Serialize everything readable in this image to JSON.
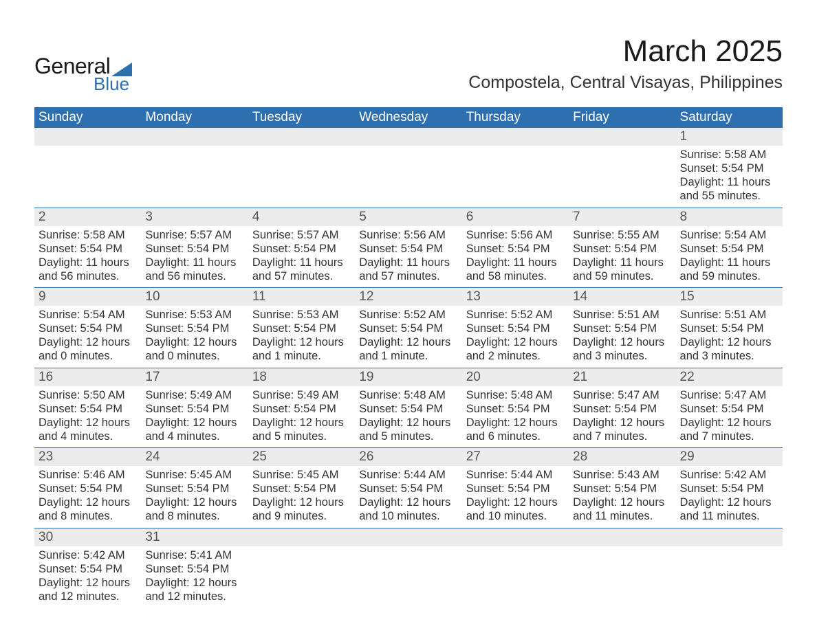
{
  "logo": {
    "text_general": "General",
    "text_blue": "Blue"
  },
  "title": "March 2025",
  "location": "Compostela, Central Visayas, Philippines",
  "colors": {
    "header_bg": "#2e6fb0",
    "header_text": "#ffffff",
    "daynum_bg": "#ececec",
    "daynum_text": "#555555",
    "body_text": "#333333",
    "rule": "#2e6fb0",
    "page_bg": "#ffffff"
  },
  "typography": {
    "title_fontsize": 44,
    "subtitle_fontsize": 25,
    "weekday_fontsize": 19,
    "daynum_fontsize": 19,
    "detail_fontsize": 16.5,
    "font_family": "Arial"
  },
  "weekdays": [
    "Sunday",
    "Monday",
    "Tuesday",
    "Wednesday",
    "Thursday",
    "Friday",
    "Saturday"
  ],
  "weeks": [
    [
      {
        "day": "",
        "sunrise": "",
        "sunset": "",
        "daylight": ""
      },
      {
        "day": "",
        "sunrise": "",
        "sunset": "",
        "daylight": ""
      },
      {
        "day": "",
        "sunrise": "",
        "sunset": "",
        "daylight": ""
      },
      {
        "day": "",
        "sunrise": "",
        "sunset": "",
        "daylight": ""
      },
      {
        "day": "",
        "sunrise": "",
        "sunset": "",
        "daylight": ""
      },
      {
        "day": "",
        "sunrise": "",
        "sunset": "",
        "daylight": ""
      },
      {
        "day": "1",
        "sunrise": "Sunrise: 5:58 AM",
        "sunset": "Sunset: 5:54 PM",
        "daylight": "Daylight: 11 hours and 55 minutes."
      }
    ],
    [
      {
        "day": "2",
        "sunrise": "Sunrise: 5:58 AM",
        "sunset": "Sunset: 5:54 PM",
        "daylight": "Daylight: 11 hours and 56 minutes."
      },
      {
        "day": "3",
        "sunrise": "Sunrise: 5:57 AM",
        "sunset": "Sunset: 5:54 PM",
        "daylight": "Daylight: 11 hours and 56 minutes."
      },
      {
        "day": "4",
        "sunrise": "Sunrise: 5:57 AM",
        "sunset": "Sunset: 5:54 PM",
        "daylight": "Daylight: 11 hours and 57 minutes."
      },
      {
        "day": "5",
        "sunrise": "Sunrise: 5:56 AM",
        "sunset": "Sunset: 5:54 PM",
        "daylight": "Daylight: 11 hours and 57 minutes."
      },
      {
        "day": "6",
        "sunrise": "Sunrise: 5:56 AM",
        "sunset": "Sunset: 5:54 PM",
        "daylight": "Daylight: 11 hours and 58 minutes."
      },
      {
        "day": "7",
        "sunrise": "Sunrise: 5:55 AM",
        "sunset": "Sunset: 5:54 PM",
        "daylight": "Daylight: 11 hours and 59 minutes."
      },
      {
        "day": "8",
        "sunrise": "Sunrise: 5:54 AM",
        "sunset": "Sunset: 5:54 PM",
        "daylight": "Daylight: 11 hours and 59 minutes."
      }
    ],
    [
      {
        "day": "9",
        "sunrise": "Sunrise: 5:54 AM",
        "sunset": "Sunset: 5:54 PM",
        "daylight": "Daylight: 12 hours and 0 minutes."
      },
      {
        "day": "10",
        "sunrise": "Sunrise: 5:53 AM",
        "sunset": "Sunset: 5:54 PM",
        "daylight": "Daylight: 12 hours and 0 minutes."
      },
      {
        "day": "11",
        "sunrise": "Sunrise: 5:53 AM",
        "sunset": "Sunset: 5:54 PM",
        "daylight": "Daylight: 12 hours and 1 minute."
      },
      {
        "day": "12",
        "sunrise": "Sunrise: 5:52 AM",
        "sunset": "Sunset: 5:54 PM",
        "daylight": "Daylight: 12 hours and 1 minute."
      },
      {
        "day": "13",
        "sunrise": "Sunrise: 5:52 AM",
        "sunset": "Sunset: 5:54 PM",
        "daylight": "Daylight: 12 hours and 2 minutes."
      },
      {
        "day": "14",
        "sunrise": "Sunrise: 5:51 AM",
        "sunset": "Sunset: 5:54 PM",
        "daylight": "Daylight: 12 hours and 3 minutes."
      },
      {
        "day": "15",
        "sunrise": "Sunrise: 5:51 AM",
        "sunset": "Sunset: 5:54 PM",
        "daylight": "Daylight: 12 hours and 3 minutes."
      }
    ],
    [
      {
        "day": "16",
        "sunrise": "Sunrise: 5:50 AM",
        "sunset": "Sunset: 5:54 PM",
        "daylight": "Daylight: 12 hours and 4 minutes."
      },
      {
        "day": "17",
        "sunrise": "Sunrise: 5:49 AM",
        "sunset": "Sunset: 5:54 PM",
        "daylight": "Daylight: 12 hours and 4 minutes."
      },
      {
        "day": "18",
        "sunrise": "Sunrise: 5:49 AM",
        "sunset": "Sunset: 5:54 PM",
        "daylight": "Daylight: 12 hours and 5 minutes."
      },
      {
        "day": "19",
        "sunrise": "Sunrise: 5:48 AM",
        "sunset": "Sunset: 5:54 PM",
        "daylight": "Daylight: 12 hours and 5 minutes."
      },
      {
        "day": "20",
        "sunrise": "Sunrise: 5:48 AM",
        "sunset": "Sunset: 5:54 PM",
        "daylight": "Daylight: 12 hours and 6 minutes."
      },
      {
        "day": "21",
        "sunrise": "Sunrise: 5:47 AM",
        "sunset": "Sunset: 5:54 PM",
        "daylight": "Daylight: 12 hours and 7 minutes."
      },
      {
        "day": "22",
        "sunrise": "Sunrise: 5:47 AM",
        "sunset": "Sunset: 5:54 PM",
        "daylight": "Daylight: 12 hours and 7 minutes."
      }
    ],
    [
      {
        "day": "23",
        "sunrise": "Sunrise: 5:46 AM",
        "sunset": "Sunset: 5:54 PM",
        "daylight": "Daylight: 12 hours and 8 minutes."
      },
      {
        "day": "24",
        "sunrise": "Sunrise: 5:45 AM",
        "sunset": "Sunset: 5:54 PM",
        "daylight": "Daylight: 12 hours and 8 minutes."
      },
      {
        "day": "25",
        "sunrise": "Sunrise: 5:45 AM",
        "sunset": "Sunset: 5:54 PM",
        "daylight": "Daylight: 12 hours and 9 minutes."
      },
      {
        "day": "26",
        "sunrise": "Sunrise: 5:44 AM",
        "sunset": "Sunset: 5:54 PM",
        "daylight": "Daylight: 12 hours and 10 minutes."
      },
      {
        "day": "27",
        "sunrise": "Sunrise: 5:44 AM",
        "sunset": "Sunset: 5:54 PM",
        "daylight": "Daylight: 12 hours and 10 minutes."
      },
      {
        "day": "28",
        "sunrise": "Sunrise: 5:43 AM",
        "sunset": "Sunset: 5:54 PM",
        "daylight": "Daylight: 12 hours and 11 minutes."
      },
      {
        "day": "29",
        "sunrise": "Sunrise: 5:42 AM",
        "sunset": "Sunset: 5:54 PM",
        "daylight": "Daylight: 12 hours and 11 minutes."
      }
    ],
    [
      {
        "day": "30",
        "sunrise": "Sunrise: 5:42 AM",
        "sunset": "Sunset: 5:54 PM",
        "daylight": "Daylight: 12 hours and 12 minutes."
      },
      {
        "day": "31",
        "sunrise": "Sunrise: 5:41 AM",
        "sunset": "Sunset: 5:54 PM",
        "daylight": "Daylight: 12 hours and 12 minutes."
      },
      {
        "day": "",
        "sunrise": "",
        "sunset": "",
        "daylight": ""
      },
      {
        "day": "",
        "sunrise": "",
        "sunset": "",
        "daylight": ""
      },
      {
        "day": "",
        "sunrise": "",
        "sunset": "",
        "daylight": ""
      },
      {
        "day": "",
        "sunrise": "",
        "sunset": "",
        "daylight": ""
      },
      {
        "day": "",
        "sunrise": "",
        "sunset": "",
        "daylight": ""
      }
    ]
  ]
}
